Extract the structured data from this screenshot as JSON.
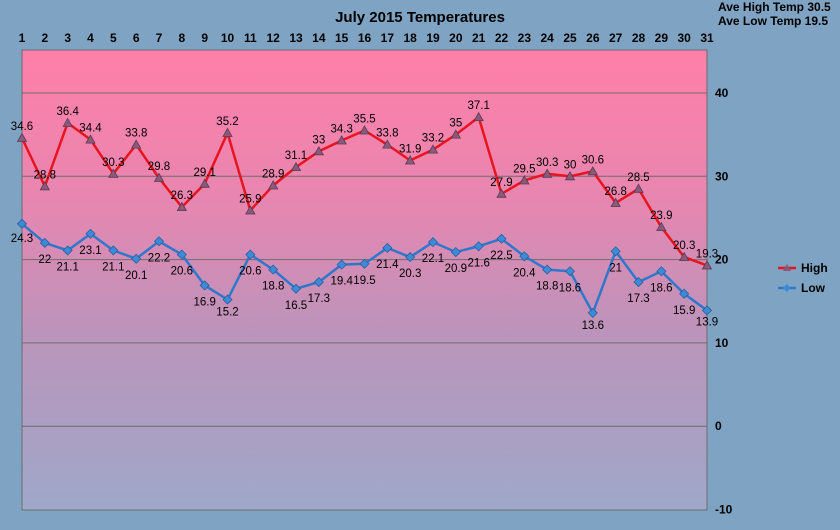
{
  "chart_data": {
    "type": "line",
    "title": "July 2015 Temperatures",
    "xlabel": "",
    "ylabel": "",
    "x": [
      1,
      2,
      3,
      4,
      5,
      6,
      7,
      8,
      9,
      10,
      11,
      12,
      13,
      14,
      15,
      16,
      17,
      18,
      19,
      20,
      21,
      22,
      23,
      24,
      25,
      26,
      27,
      28,
      29,
      30,
      31
    ],
    "ylim": [
      -10,
      45
    ],
    "yticks": [
      -10,
      0,
      10,
      20,
      30,
      40
    ],
    "grid": true,
    "legend": "right",
    "series": [
      {
        "name": "High",
        "color": "#e8141e",
        "values": [
          34.6,
          28.8,
          36.4,
          34.4,
          30.3,
          33.8,
          29.8,
          26.3,
          29.1,
          35.2,
          25.9,
          28.9,
          31.1,
          33,
          34.3,
          35.5,
          33.8,
          31.9,
          33.2,
          35,
          37.1,
          27.9,
          29.5,
          30.3,
          30,
          30.6,
          26.8,
          28.5,
          23.9,
          20.3,
          19.3
        ]
      },
      {
        "name": "Low",
        "color": "#2f77cc",
        "values": [
          24.3,
          22,
          21.1,
          23.1,
          21.1,
          20.1,
          22.2,
          20.6,
          16.9,
          15.2,
          20.6,
          18.8,
          16.5,
          17.3,
          19.4,
          19.5,
          21.4,
          20.3,
          22.1,
          20.9,
          21.6,
          22.5,
          20.4,
          18.8,
          18.6,
          13.6,
          21,
          17.3,
          18.6,
          15.9,
          13.9
        ]
      }
    ]
  },
  "stats": {
    "ave_high": "Ave High Temp 30.5",
    "ave_low": "Ave Low Temp 19.5"
  }
}
